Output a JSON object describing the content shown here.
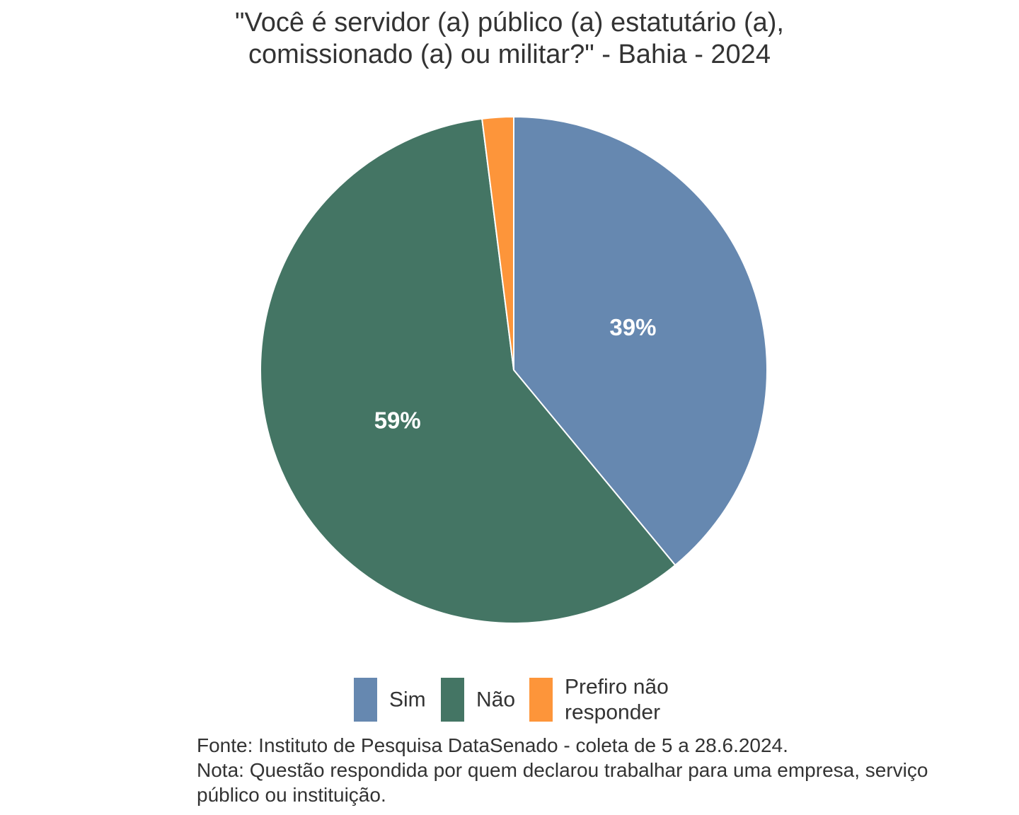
{
  "chart_data": {
    "type": "pie",
    "title": "\"Você é servidor (a) público (a) estatutário (a), comissionado (a) ou militar?\" - Bahia - 2024",
    "title_lines": [
      "\"Você é servidor (a) público (a) estatutário (a),",
      "comissionado (a) ou militar?\" - Bahia - 2024"
    ],
    "slices": [
      {
        "name": "Sim",
        "value": 39,
        "label": "39%",
        "color": "#6688b0",
        "legend_lines": [
          "Sim"
        ]
      },
      {
        "name": "Não",
        "value": 59,
        "label": "59%",
        "color": "#447564",
        "legend_lines": [
          "Não"
        ]
      },
      {
        "name": "Prefiro não responder",
        "value": 2,
        "label": "",
        "color": "#fd953a",
        "legend_lines": [
          "Prefiro não",
          "responder"
        ]
      }
    ],
    "start_angle": "12 o'clock",
    "direction": "clockwise",
    "legend_position": "bottom",
    "caption_lines": [
      "Fonte: Instituto de Pesquisa DataSenado - coleta de 5 a 28.6.2024.",
      "Nota: Questão respondida por quem declarou trabalhar para uma empresa, serviço",
      "público ou instituição."
    ]
  }
}
